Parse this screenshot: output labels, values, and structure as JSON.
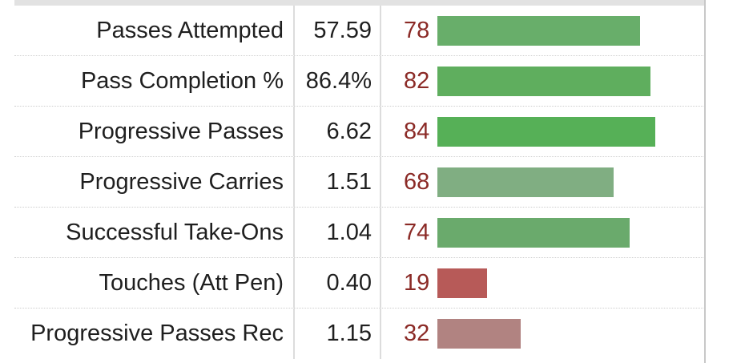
{
  "chart_data": {
    "type": "bar",
    "orientation": "horizontal",
    "xlim": [
      0,
      100
    ],
    "rows": [
      {
        "label": "Passes Attempted",
        "per90": "57.59",
        "percentile": 78,
        "color": "#68ae6a"
      },
      {
        "label": "Pass Completion %",
        "per90": "86.4%",
        "percentile": 82,
        "color": "#5fae5e"
      },
      {
        "label": "Progressive Passes",
        "per90": "6.62",
        "percentile": 84,
        "color": "#56b057"
      },
      {
        "label": "Progressive Carries",
        "per90": "1.51",
        "percentile": 68,
        "color": "#80ae82"
      },
      {
        "label": "Successful Take-Ons",
        "per90": "1.04",
        "percentile": 74,
        "color": "#6aaa6c"
      },
      {
        "label": "Touches (Att Pen)",
        "per90": "0.40",
        "percentile": 19,
        "color": "#b75a58"
      },
      {
        "label": "Progressive Passes Rec",
        "per90": "1.15",
        "percentile": 32,
        "color": "#b18381"
      }
    ]
  }
}
